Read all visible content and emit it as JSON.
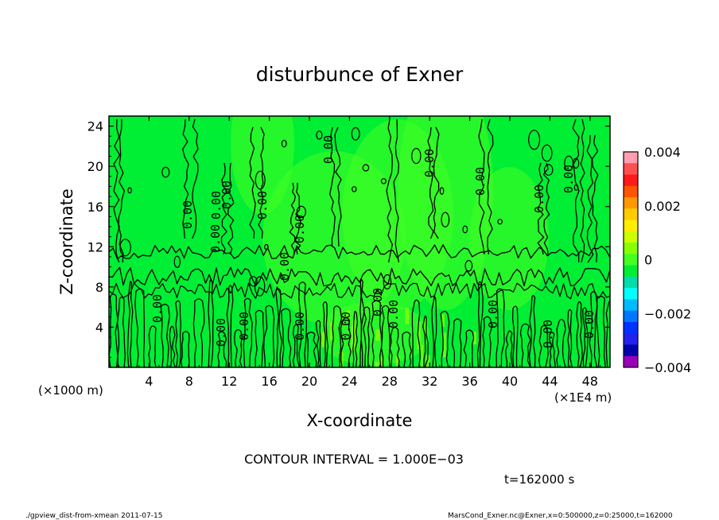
{
  "chart_data": {
    "type": "heatmap",
    "title": "disturbunce of Exner",
    "xlabel": "X-coordinate",
    "ylabel": "Z-coordinate",
    "x_unit_note": "(×1E4 m)",
    "y_unit_note": "(×1000 m)",
    "xlim": [
      0,
      50
    ],
    "ylim": [
      0,
      25
    ],
    "x_ticks": [
      "4",
      "8",
      "12",
      "16",
      "20",
      "24",
      "28",
      "32",
      "36",
      "40",
      "44",
      "48"
    ],
    "y_ticks": [
      "4",
      "8",
      "12",
      "16",
      "20",
      "24"
    ],
    "colorbar": {
      "ticks": [
        "0.004",
        "0.002",
        "0",
        "−0.002",
        "−0.004"
      ],
      "range": [
        -0.004,
        0.004
      ]
    },
    "contour_labels": [
      "0.00",
      "0.00",
      "0.00",
      "0.00",
      "0.00",
      "0.00",
      "0.00",
      "0.00",
      "0.00",
      "0.00",
      "0.00",
      "0.00",
      "0.00",
      "0.00",
      "0.00",
      "0.00",
      "0.00",
      "0.00",
      "0.00",
      "0.00",
      "0.00",
      "0.00"
    ],
    "contour_interval": "CONTOUR INTERVAL = 1.000E−03",
    "time_label": "t=162000 s",
    "footer_left": "./gpview_dist-from-xmean  2011-07-15",
    "footer_right": "MarsCond_Exner.nc@Exner,x=0:500000,z=0:25000,t=162000"
  },
  "colors": {
    "field_main": "#00ee33",
    "field_light": "#44ff22",
    "field_yellow": "#99ff00",
    "colorbar": [
      "#ff9eb0",
      "#ff5050",
      "#ff1a1a",
      "#ff5500",
      "#ff9900",
      "#ffcc00",
      "#ffee00",
      "#ccff00",
      "#88ff00",
      "#44ff22",
      "#00ee33",
      "#00ddaa",
      "#00ffff",
      "#00bbff",
      "#0077ff",
      "#0033ff",
      "#2222ee",
      "#0000aa",
      "#9900bb"
    ]
  }
}
